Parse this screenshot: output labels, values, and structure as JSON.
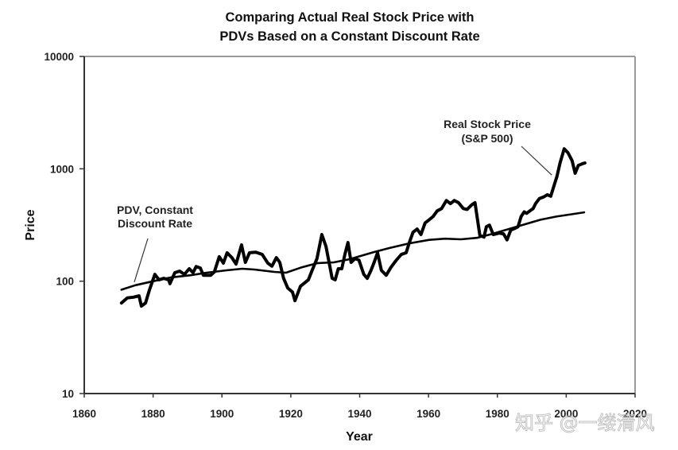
{
  "chart_data": {
    "type": "line",
    "title": [
      "Comparing Actual Real Stock Price with",
      "PDVs Based on a Constant Discount Rate"
    ],
    "xlabel": "Year",
    "ylabel": "Price",
    "xlim": [
      1860,
      2020
    ],
    "ylim": [
      10,
      10000
    ],
    "yscale": "log",
    "grid": false,
    "x_ticks": [
      1860,
      1880,
      1900,
      1920,
      1940,
      1960,
      1980,
      2000,
      2020
    ],
    "y_ticks": [
      10,
      100,
      1000,
      10000
    ],
    "series": [
      {
        "name": "Real Stock Price (S&P 500)",
        "x": [
          1870.8,
          1872.5,
          1874.3,
          1875.9,
          1876.6,
          1877.8,
          1878.9,
          1880.5,
          1881.7,
          1883.1,
          1884.5,
          1884.9,
          1886.3,
          1887.7,
          1889.1,
          1890.5,
          1891.6,
          1892.5,
          1893.7,
          1894.6,
          1896.7,
          1897.8,
          1899.2,
          1900.4,
          1901.5,
          1902.9,
          1904.1,
          1905.7,
          1906.8,
          1908.0,
          1909.8,
          1911.7,
          1913.3,
          1914.5,
          1915.8,
          1916.8,
          1917.9,
          1919.1,
          1920.5,
          1921.2,
          1922.8,
          1923.9,
          1925.1,
          1926.2,
          1927.6,
          1929.0,
          1930.2,
          1931.1,
          1932.0,
          1932.9,
          1933.8,
          1934.8,
          1935.7,
          1936.6,
          1937.5,
          1938.7,
          1939.8,
          1941.2,
          1942.2,
          1943.3,
          1944.2,
          1945.2,
          1946.3,
          1947.7,
          1949.1,
          1950.5,
          1952.1,
          1953.5,
          1954.4,
          1955.5,
          1956.7,
          1957.8,
          1959.0,
          1960.2,
          1961.3,
          1962.5,
          1963.8,
          1965.2,
          1966.4,
          1967.5,
          1968.7,
          1970.1,
          1971.2,
          1972.6,
          1973.5,
          1974.9,
          1976.1,
          1976.8,
          1977.7,
          1978.8,
          1980.5,
          1981.8,
          1982.8,
          1983.9,
          1985.1,
          1986.0,
          1986.9,
          1987.8,
          1988.5,
          1989.7,
          1990.4,
          1991.1,
          1992.2,
          1993.4,
          1994.5,
          1995.5,
          1996.4,
          1997.3,
          1998.2,
          1999.4,
          2000.5,
          2001.7,
          2002.6,
          2003.5,
          2004.7,
          2005.4
        ],
        "values": [
          64,
          71,
          72,
          74,
          60,
          64,
          83,
          115,
          103,
          106,
          103,
          95,
          119,
          123,
          115,
          129,
          119,
          135,
          131,
          113,
          113,
          121,
          165,
          145,
          179,
          162,
          142,
          210,
          147,
          179,
          181,
          173,
          145,
          136,
          162,
          147,
          106,
          87,
          80,
          67,
          90,
          96,
          103,
          125,
          159,
          260,
          204,
          147,
          106,
          103,
          129,
          129,
          173,
          221,
          147,
          159,
          154,
          115,
          106,
          125,
          147,
          179,
          125,
          113,
          133,
          152,
          173,
          179,
          220,
          272,
          291,
          260,
          330,
          352,
          376,
          422,
          443,
          522,
          490,
          522,
          500,
          443,
          435,
          480,
          500,
          256,
          247,
          305,
          315,
          260,
          268,
          264,
          233,
          285,
          295,
          305,
          376,
          414,
          402,
          428,
          443,
          490,
          543,
          561,
          588,
          570,
          700,
          855,
          1126,
          1507,
          1392,
          1185,
          914,
          1070,
          1110,
          1126
        ]
      },
      {
        "name": "PDV, Constant Discount Rate",
        "x": [
          1870.8,
          1874.8,
          1879.4,
          1885.2,
          1890.9,
          1895.5,
          1901.3,
          1905.9,
          1909.4,
          1915.2,
          1918.6,
          1923.2,
          1927.8,
          1932.5,
          1937.1,
          1944.0,
          1948.6,
          1954.4,
          1960.2,
          1964.8,
          1969.4,
          1974.0,
          1978.6,
          1985.5,
          1992.5,
          1997.1,
          2005.2
        ],
        "values": [
          84,
          92,
          99,
          108,
          113,
          119,
          125,
          129,
          127,
          121,
          119,
          133,
          145,
          147,
          157,
          181,
          197,
          217,
          233,
          239,
          236,
          243,
          264,
          305,
          352,
          376,
          410
        ]
      }
    ],
    "annotations": [
      {
        "lines": [
          "PDV, Constant",
          "Discount Rate"
        ],
        "points_to_series": "PDV, Constant Discount Rate",
        "points_to": [
          1875,
          92
        ]
      },
      {
        "lines": [
          "Real Stock Price",
          "(S&P 500)"
        ],
        "points_to_series": "Real Stock Price (S&P 500)",
        "points_to": [
          1996.5,
          700
        ]
      }
    ]
  },
  "watermark": "知乎 @一缕清风"
}
